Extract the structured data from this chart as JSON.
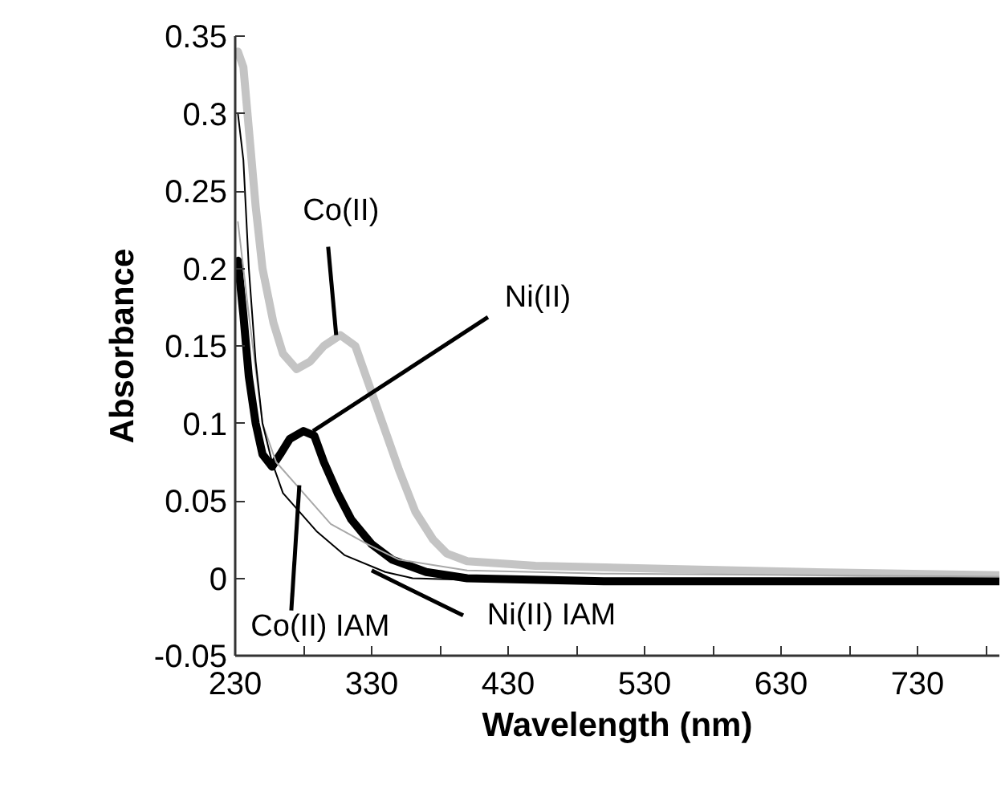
{
  "chart_data": {
    "type": "line",
    "xlabel": "Wavelength (nm)",
    "ylabel": "Absorbance",
    "xlim": [
      230,
      790
    ],
    "ylim": [
      -0.05,
      0.35
    ],
    "xticks": [
      230,
      {
        "value": 280,
        "label": null
      },
      330,
      {
        "value": 380,
        "label": null
      },
      430,
      {
        "value": 480,
        "label": null
      },
      530,
      {
        "value": 580,
        "label": null
      },
      630,
      {
        "value": 680,
        "label": null
      },
      730,
      {
        "value": 780,
        "label": null
      }
    ],
    "yticks": [
      {
        "value": -0.05,
        "label": "-0.05"
      },
      0,
      0.05,
      0.1,
      0.15,
      0.2,
      0.25,
      0.3,
      0.35
    ],
    "grid": false,
    "marker": "none",
    "line_style": "solid",
    "series": [
      {
        "color": "#c4c4c4",
        "x": [
          232,
          236,
          240,
          245,
          250,
          258,
          265,
          275,
          285,
          295,
          307,
          318,
          328,
          338,
          350,
          362,
          375,
          385,
          400,
          450,
          550,
          650,
          790
        ],
        "values": [
          0.34,
          0.33,
          0.29,
          0.24,
          0.2,
          0.165,
          0.145,
          0.135,
          0.14,
          0.15,
          0.157,
          0.15,
          0.125,
          0.1,
          0.07,
          0.043,
          0.025,
          0.016,
          0.011,
          0.008,
          0.006,
          0.004,
          0.002
        ]
      },
      {
        "color": "#000000",
        "x": [
          232,
          236,
          240,
          245,
          250,
          257,
          263,
          270,
          280,
          288,
          295,
          305,
          315,
          330,
          345,
          370,
          400,
          500,
          790
        ],
        "values": [
          0.205,
          0.17,
          0.13,
          0.1,
          0.08,
          0.072,
          0.08,
          0.09,
          0.095,
          0.092,
          0.075,
          0.055,
          0.038,
          0.022,
          0.012,
          0.004,
          0.0,
          -0.002,
          -0.002
        ]
      },
      {
        "color": "#a8a8a8",
        "x": [
          232,
          240,
          250,
          260,
          275,
          300,
          327,
          350,
          400,
          500,
          790
        ],
        "values": [
          0.23,
          0.17,
          0.1,
          0.075,
          0.06,
          0.035,
          0.022,
          0.012,
          0.005,
          0.003,
          0.001
        ]
      },
      {
        "color": "#000000",
        "x": [
          232,
          236,
          240,
          245,
          250,
          257,
          265,
          275,
          290,
          310,
          340,
          360,
          400,
          790
        ],
        "values": [
          0.3,
          0.27,
          0.2,
          0.14,
          0.1,
          0.075,
          0.055,
          0.045,
          0.03,
          0.015,
          0.004,
          0.0,
          -0.001,
          -0.001
        ]
      }
    ],
    "annotations": [
      {
        "text": "Co(II)",
        "x": 304,
        "y": 0.157
      },
      {
        "text": "Ni(II)",
        "x": 287,
        "y": 0.095
      },
      {
        "text": "Co(II) IAM",
        "x": 277,
        "y": 0.06
      },
      {
        "text": "Ni(II) IAM",
        "x": 330,
        "y": 0.005
      }
    ]
  }
}
